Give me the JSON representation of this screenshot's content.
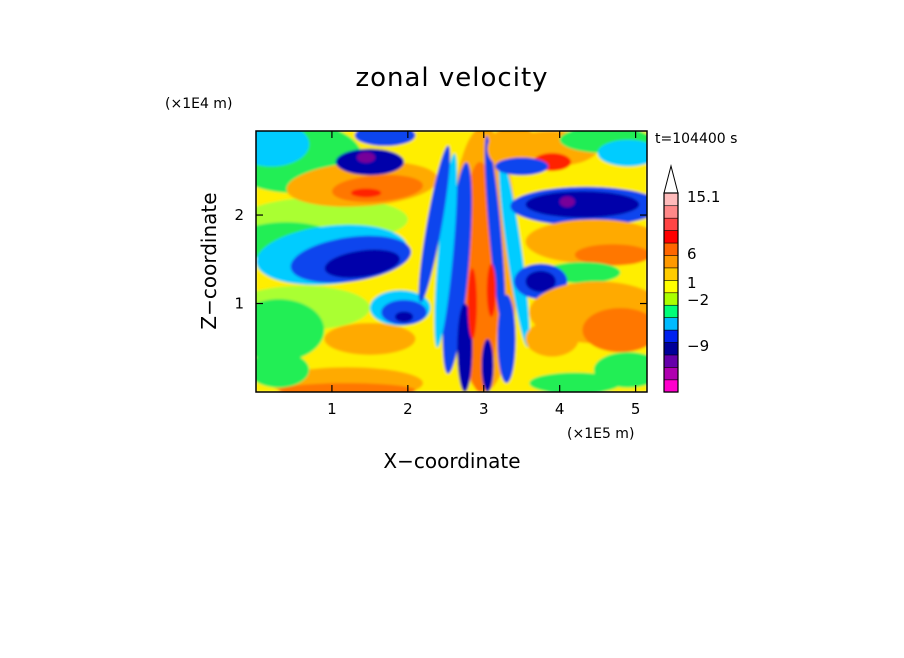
{
  "chart_data": {
    "type": "heatmap",
    "title": "zonal velocity",
    "xlabel": "X−coordinate",
    "ylabel": "Z−coordinate",
    "x_scale_label": "(×1E5 m)",
    "y_scale_label": "(×1E4 m)",
    "time_label": "t=104400 s",
    "xlim": [
      0,
      5.15
    ],
    "ylim": [
      0,
      2.95
    ],
    "x_ticks": [
      {
        "value": 1,
        "label": "1"
      },
      {
        "value": 2,
        "label": "2"
      },
      {
        "value": 3,
        "label": "3"
      },
      {
        "value": 4,
        "label": "4"
      },
      {
        "value": 5,
        "label": "5"
      }
    ],
    "y_ticks": [
      {
        "value": 1,
        "label": "1"
      },
      {
        "value": 2,
        "label": "2"
      }
    ],
    "colorbar": {
      "levels": [
        {
          "color": "#ff00cc"
        },
        {
          "color": "#b000b0"
        },
        {
          "color": "#6600aa"
        },
        {
          "color": "#000099"
        },
        {
          "color": "#0022ee"
        },
        {
          "color": "#00bbff"
        },
        {
          "color": "#00ff77"
        },
        {
          "color": "#aaff00"
        },
        {
          "color": "#ffff00"
        },
        {
          "color": "#ffcc00"
        },
        {
          "color": "#ff9900"
        },
        {
          "color": "#ff6600"
        },
        {
          "color": "#ff0000"
        },
        {
          "color": "#ff4444"
        },
        {
          "color": "#ff8888"
        },
        {
          "color": "#ffbbbb"
        }
      ],
      "labels": [
        "15.1",
        "6",
        "1",
        "−2",
        "−9"
      ],
      "extends_max": true
    },
    "field_colors": {
      "background": "#ffee00",
      "light_green": "#aaff33",
      "green": "#22ee55",
      "cyan": "#00ccff",
      "blue": "#1144ee",
      "navy": "#0000aa",
      "purple": "#770099",
      "orange": "#ffaa00",
      "dark_orange": "#ff7700",
      "red": "#ff2200"
    }
  }
}
